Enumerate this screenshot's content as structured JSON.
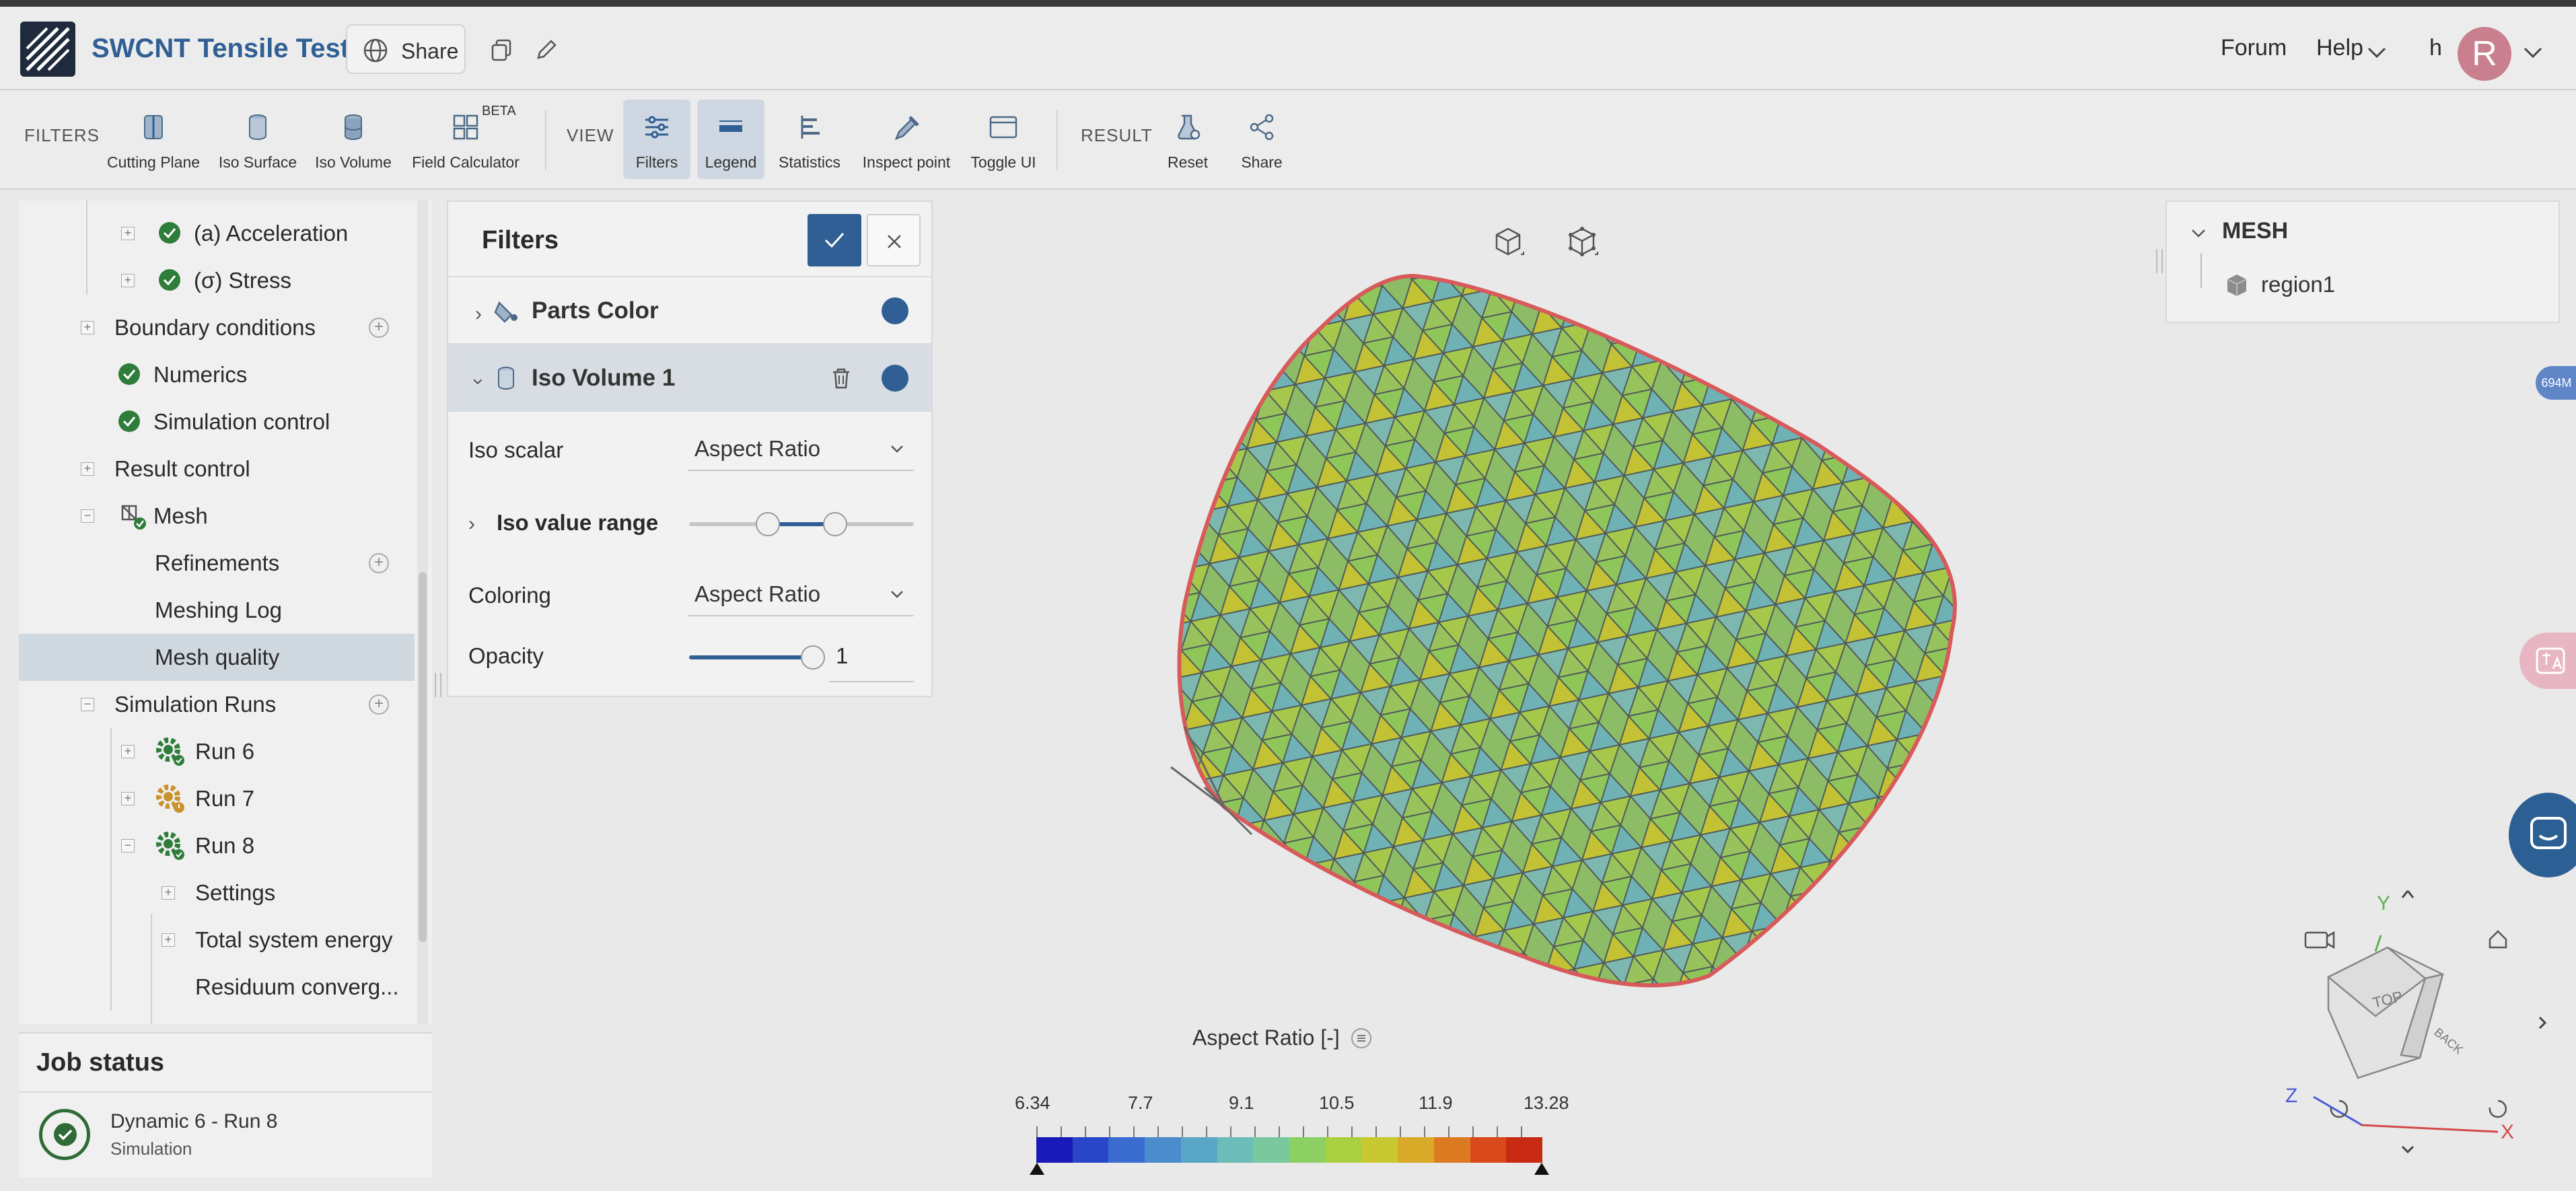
{
  "header": {
    "title": "SWCNT Tensile Test",
    "share_label": "Share",
    "forum_label": "Forum",
    "help_label": "Help",
    "user_initial": "h",
    "avatar_letter": "R"
  },
  "toolbar": {
    "filters_section": "FILTERS",
    "view_section": "VIEW",
    "result_section": "RESULT",
    "beta_badge": "BETA",
    "buttons": [
      {
        "label": "Cutting Plane",
        "icon": "cutting-plane-icon"
      },
      {
        "label": "Iso Surface",
        "icon": "iso-surface-icon"
      },
      {
        "label": "Iso Volume",
        "icon": "iso-volume-icon"
      },
      {
        "label": "Field Calculator",
        "icon": "field-calculator-icon"
      },
      {
        "label": "Filters",
        "icon": "filters-icon",
        "active": true
      },
      {
        "label": "Legend",
        "icon": "legend-icon",
        "active": true
      },
      {
        "label": "Statistics",
        "icon": "statistics-icon"
      },
      {
        "label": "Inspect point",
        "icon": "inspect-point-icon"
      },
      {
        "label": "Toggle UI",
        "icon": "toggle-ui-icon"
      },
      {
        "label": "Reset",
        "icon": "reset-icon"
      },
      {
        "label": "Share",
        "icon": "share-icon"
      }
    ]
  },
  "tree": {
    "items": [
      {
        "label": "(a) Acceleration"
      },
      {
        "label": "(σ) Stress"
      },
      {
        "label": "Boundary conditions"
      },
      {
        "label": "Numerics"
      },
      {
        "label": "Simulation control"
      },
      {
        "label": "Result control"
      },
      {
        "label": "Mesh"
      },
      {
        "label": "Refinements"
      },
      {
        "label": "Meshing Log"
      },
      {
        "label": "Mesh quality",
        "selected": true
      },
      {
        "label": "Simulation Runs"
      },
      {
        "label": "Run 6",
        "status": "finished"
      },
      {
        "label": "Run 7",
        "status": "warning"
      },
      {
        "label": "Run 8",
        "status": "finished"
      },
      {
        "label": "Settings"
      },
      {
        "label": "Total system energy"
      },
      {
        "label": "Residuum converg..."
      }
    ]
  },
  "job_status": {
    "title": "Job status",
    "job_name": "Dynamic 6 - Run 8",
    "job_type": "Simulation"
  },
  "filters_panel": {
    "title": "Filters",
    "parts_color_label": "Parts Color",
    "iso_volume_label": "Iso Volume 1",
    "iso_scalar_label": "Iso scalar",
    "iso_scalar_value": "Aspect Ratio",
    "iso_value_range_label": "Iso value range",
    "iso_range_low_fraction": 0.35,
    "iso_range_high_fraction": 0.65,
    "coloring_label": "Coloring",
    "coloring_value": "Aspect Ratio",
    "opacity_label": "Opacity",
    "opacity_value": "1",
    "opacity_fraction": 1.0
  },
  "mesh_panel": {
    "title": "MESH",
    "region": "region1"
  },
  "memory_badge": "694M",
  "legend": {
    "title": "Aspect Ratio [-]",
    "ticks": [
      "6.34",
      "7.7",
      "9.1",
      "10.5",
      "11.9",
      "13.28"
    ],
    "colors": [
      "#1a1ab8",
      "#2a46c8",
      "#3a6cd0",
      "#4a8ccc",
      "#5aa6c6",
      "#6cbcb8",
      "#7ac89e",
      "#8cd064",
      "#a8d040",
      "#c8c830",
      "#d8aa28",
      "#dc7a22",
      "#d84a1c",
      "#c82a14"
    ]
  },
  "nav_cube": {
    "top_label": "TOP",
    "back_label": "BACK",
    "axis_x": "X",
    "axis_y": "Y",
    "axis_z": "Z"
  },
  "colors": {
    "accent": "#2f5f94",
    "title": "#2f5f94",
    "check_green": "#2f7d3b"
  }
}
